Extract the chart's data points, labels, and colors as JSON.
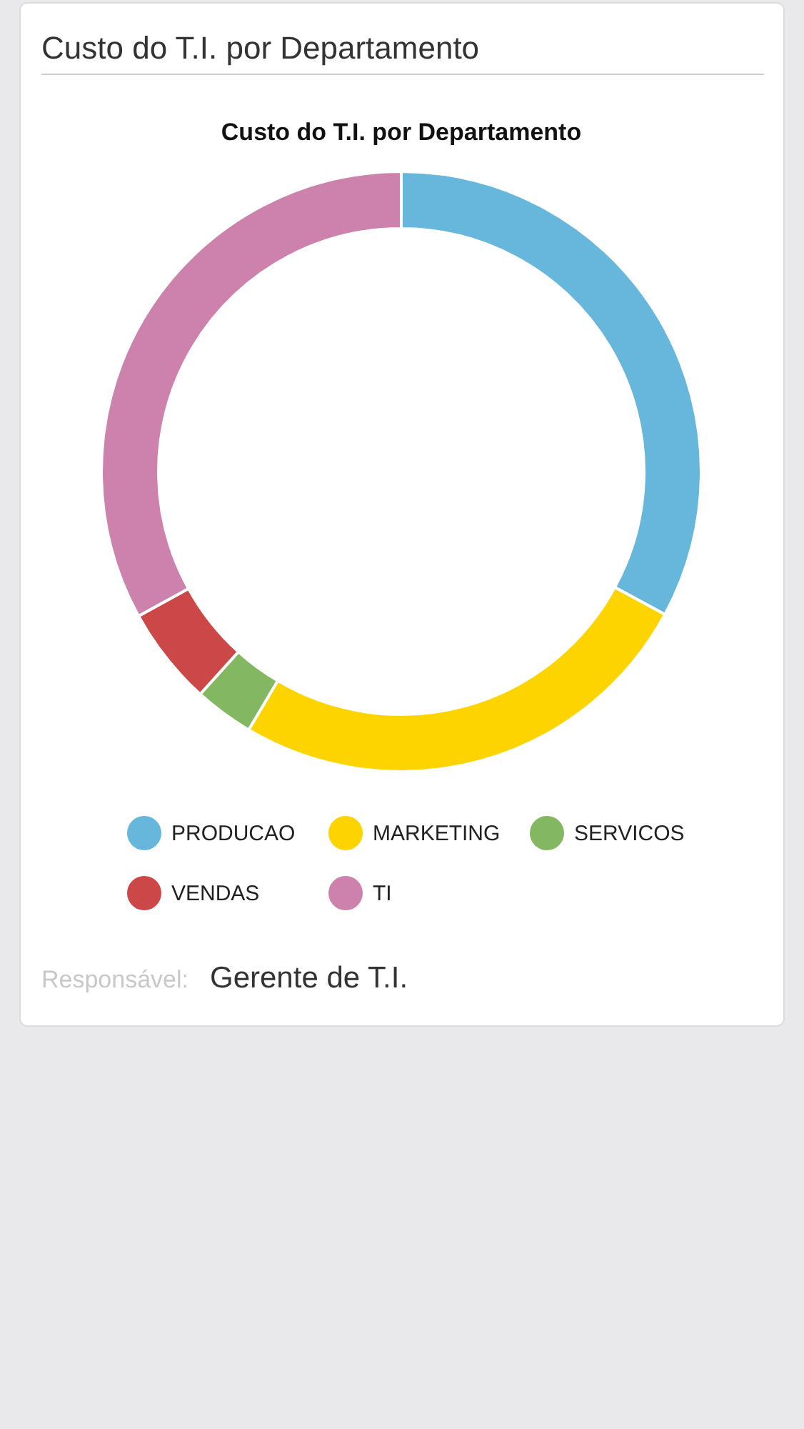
{
  "chart_data": {
    "type": "donut",
    "title": "Custo do T.I. por Departamento",
    "categories": [
      "PRODUCAO",
      "MARKETING",
      "SERVICOS",
      "VENDAS",
      "TI"
    ],
    "values": [
      32.9,
      25.6,
      3.2,
      5.3,
      33.0
    ],
    "colors": [
      "#67b7dc",
      "#fdd400",
      "#84b761",
      "#cc4748",
      "#cd82ad"
    ],
    "legend": "bottom",
    "annotations": [
      "Custo do T.I. por Departamento",
      "Responsável:",
      "Gerente de T.I."
    ]
  }
}
